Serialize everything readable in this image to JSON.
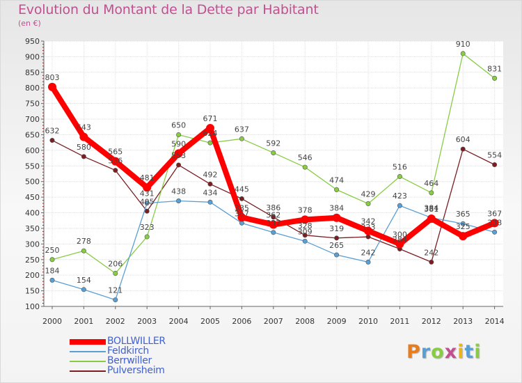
{
  "chart_data": {
    "type": "line",
    "title": "Evolution du Montant de la Dette par Habitant",
    "subtitle": "(en €)",
    "x": [
      "2000",
      "2001",
      "2002",
      "2003",
      "2004",
      "2005",
      "2006",
      "2007",
      "2008",
      "2009",
      "2010",
      "2011",
      "2012",
      "2013",
      "2014"
    ],
    "ylim": [
      100,
      950
    ],
    "yticks": [
      100,
      150,
      200,
      250,
      300,
      350,
      400,
      450,
      500,
      550,
      600,
      650,
      700,
      750,
      800,
      850,
      900,
      950
    ],
    "grid": "horizontal",
    "legend_position": "bottom-left",
    "series": [
      {
        "name": "BOLLWILLER",
        "color": "#ff0000",
        "values": [
          803,
          643,
          565,
          481,
          590,
          671,
          385,
          362,
          378,
          384,
          342,
          300,
          381,
          325,
          367
        ]
      },
      {
        "name": "Feldkirch",
        "color": "#5a9fd4",
        "values": [
          184,
          154,
          121,
          431,
          438,
          434,
          367,
          337,
          309,
          265,
          242,
          423,
          384,
          365,
          338
        ]
      },
      {
        "name": "Berrwiller",
        "color": "#88cc44",
        "values": [
          250,
          278,
          206,
          323,
          650,
          624,
          637,
          592,
          546,
          474,
          429,
          516,
          464,
          910,
          831
        ]
      },
      {
        "name": "Pulversheim",
        "color": "#7a1e22",
        "values": [
          632,
          580,
          536,
          405,
          553,
          492,
          445,
          386,
          328,
          319,
          323,
          284,
          242,
          604,
          554
        ]
      }
    ]
  },
  "logo": {
    "letters": [
      "P",
      "r",
      "o",
      "x",
      "i",
      "t",
      "i"
    ],
    "colors": [
      "#e87d1e",
      "#5a9fd4",
      "#88cc44",
      "#c05090",
      "#e8b51e",
      "#5a9fd4",
      "#88cc44"
    ]
  }
}
